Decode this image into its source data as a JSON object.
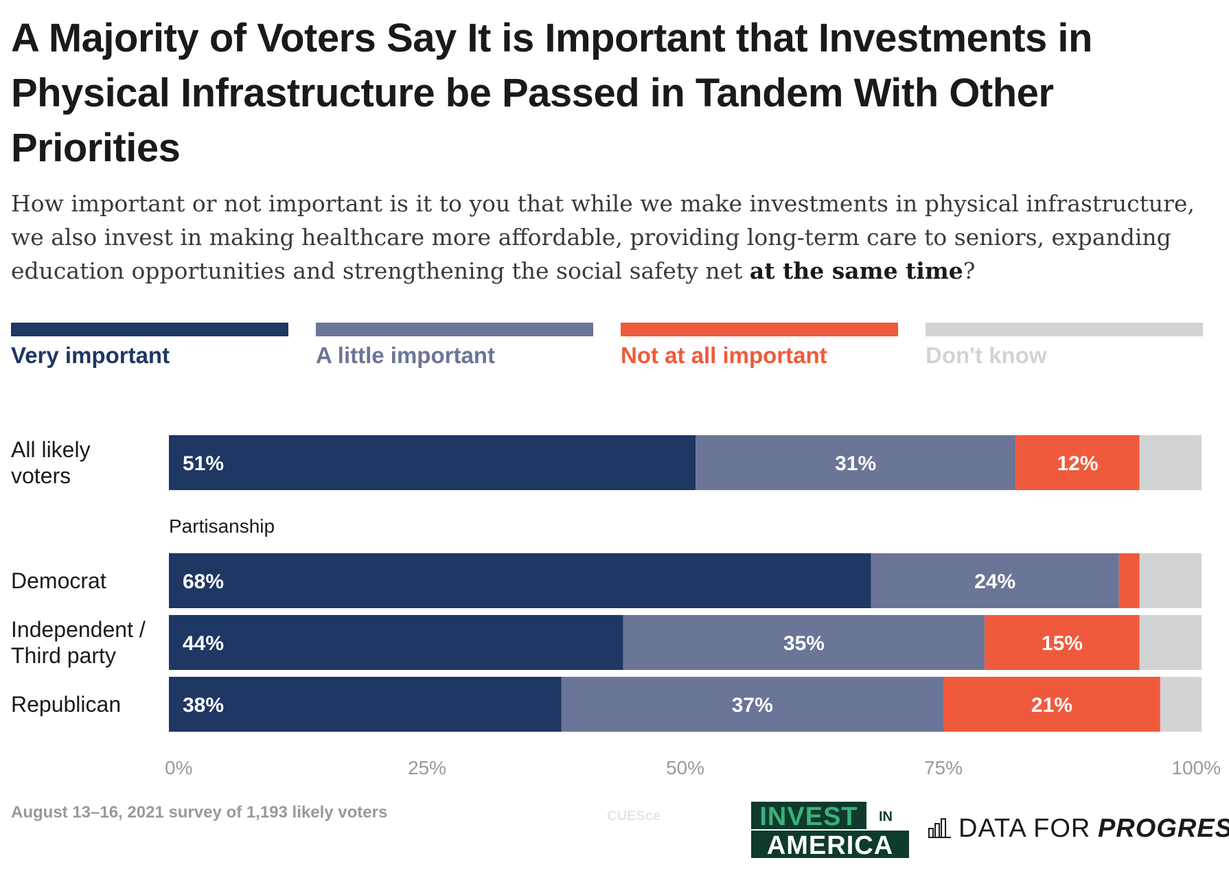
{
  "title": "A Majority of Voters Say It is Important that Investments in Physical Infrastructure be Passed in Tandem With Other Priorities",
  "subtitle": {
    "text_before": "How important or not important is it to you that while we make investments in physical infrastructure, we also invest in making healthcare more affordable, providing long-term care to seniors, expanding education opportunities and strengthening the social safety net ",
    "emphasis": "at the same time",
    "text_after": "?"
  },
  "colors": {
    "very_important": "#1e3763",
    "a_little_important": "#6b7597",
    "not_at_all_important": "#f05a3c",
    "dont_know": "#d2d3d5"
  },
  "legend": [
    {
      "label": "Very important",
      "color": "#1e3763"
    },
    {
      "label": "A little important",
      "color": "#6b7597"
    },
    {
      "label": "Not at all important",
      "color": "#f05a3c"
    },
    {
      "label": "Don't know",
      "color": "#d2d3d5"
    }
  ],
  "chart_data": {
    "type": "bar",
    "orientation": "horizontal",
    "stacked": true,
    "xlim": [
      0,
      100
    ],
    "xticks": [
      "0%",
      "25%",
      "50%",
      "75%",
      "100%"
    ],
    "group_label": "Partisanship",
    "categories": [
      "All likely\nvoters",
      "Democrat",
      "Independent /\nThird party",
      "Republican"
    ],
    "series": [
      {
        "name": "Very important",
        "values": [
          51,
          68,
          44,
          38
        ],
        "labels": [
          "51%",
          "68%",
          "44%",
          "38%"
        ]
      },
      {
        "name": "A little important",
        "values": [
          31,
          24,
          35,
          37
        ],
        "labels": [
          "31%",
          "24%",
          "35%",
          "37%"
        ]
      },
      {
        "name": "Not at all important",
        "values": [
          12,
          2,
          15,
          21
        ],
        "labels": [
          "12%",
          "",
          "15%",
          "21%"
        ]
      },
      {
        "name": "Don't know",
        "values": [
          5,
          6,
          6,
          4
        ],
        "labels": [
          "",
          "",
          "",
          ""
        ]
      }
    ]
  },
  "footer": {
    "note": "August 13–16, 2021 survey of 1,193 likely voters",
    "watermark": "CUESce",
    "logo_invest_line1": "INVEST",
    "logo_invest_in": "IN",
    "logo_invest_line2": "AMERICA",
    "logo_dfp_part1": "DATA FOR",
    "logo_dfp_part2": "PROGRESS"
  }
}
